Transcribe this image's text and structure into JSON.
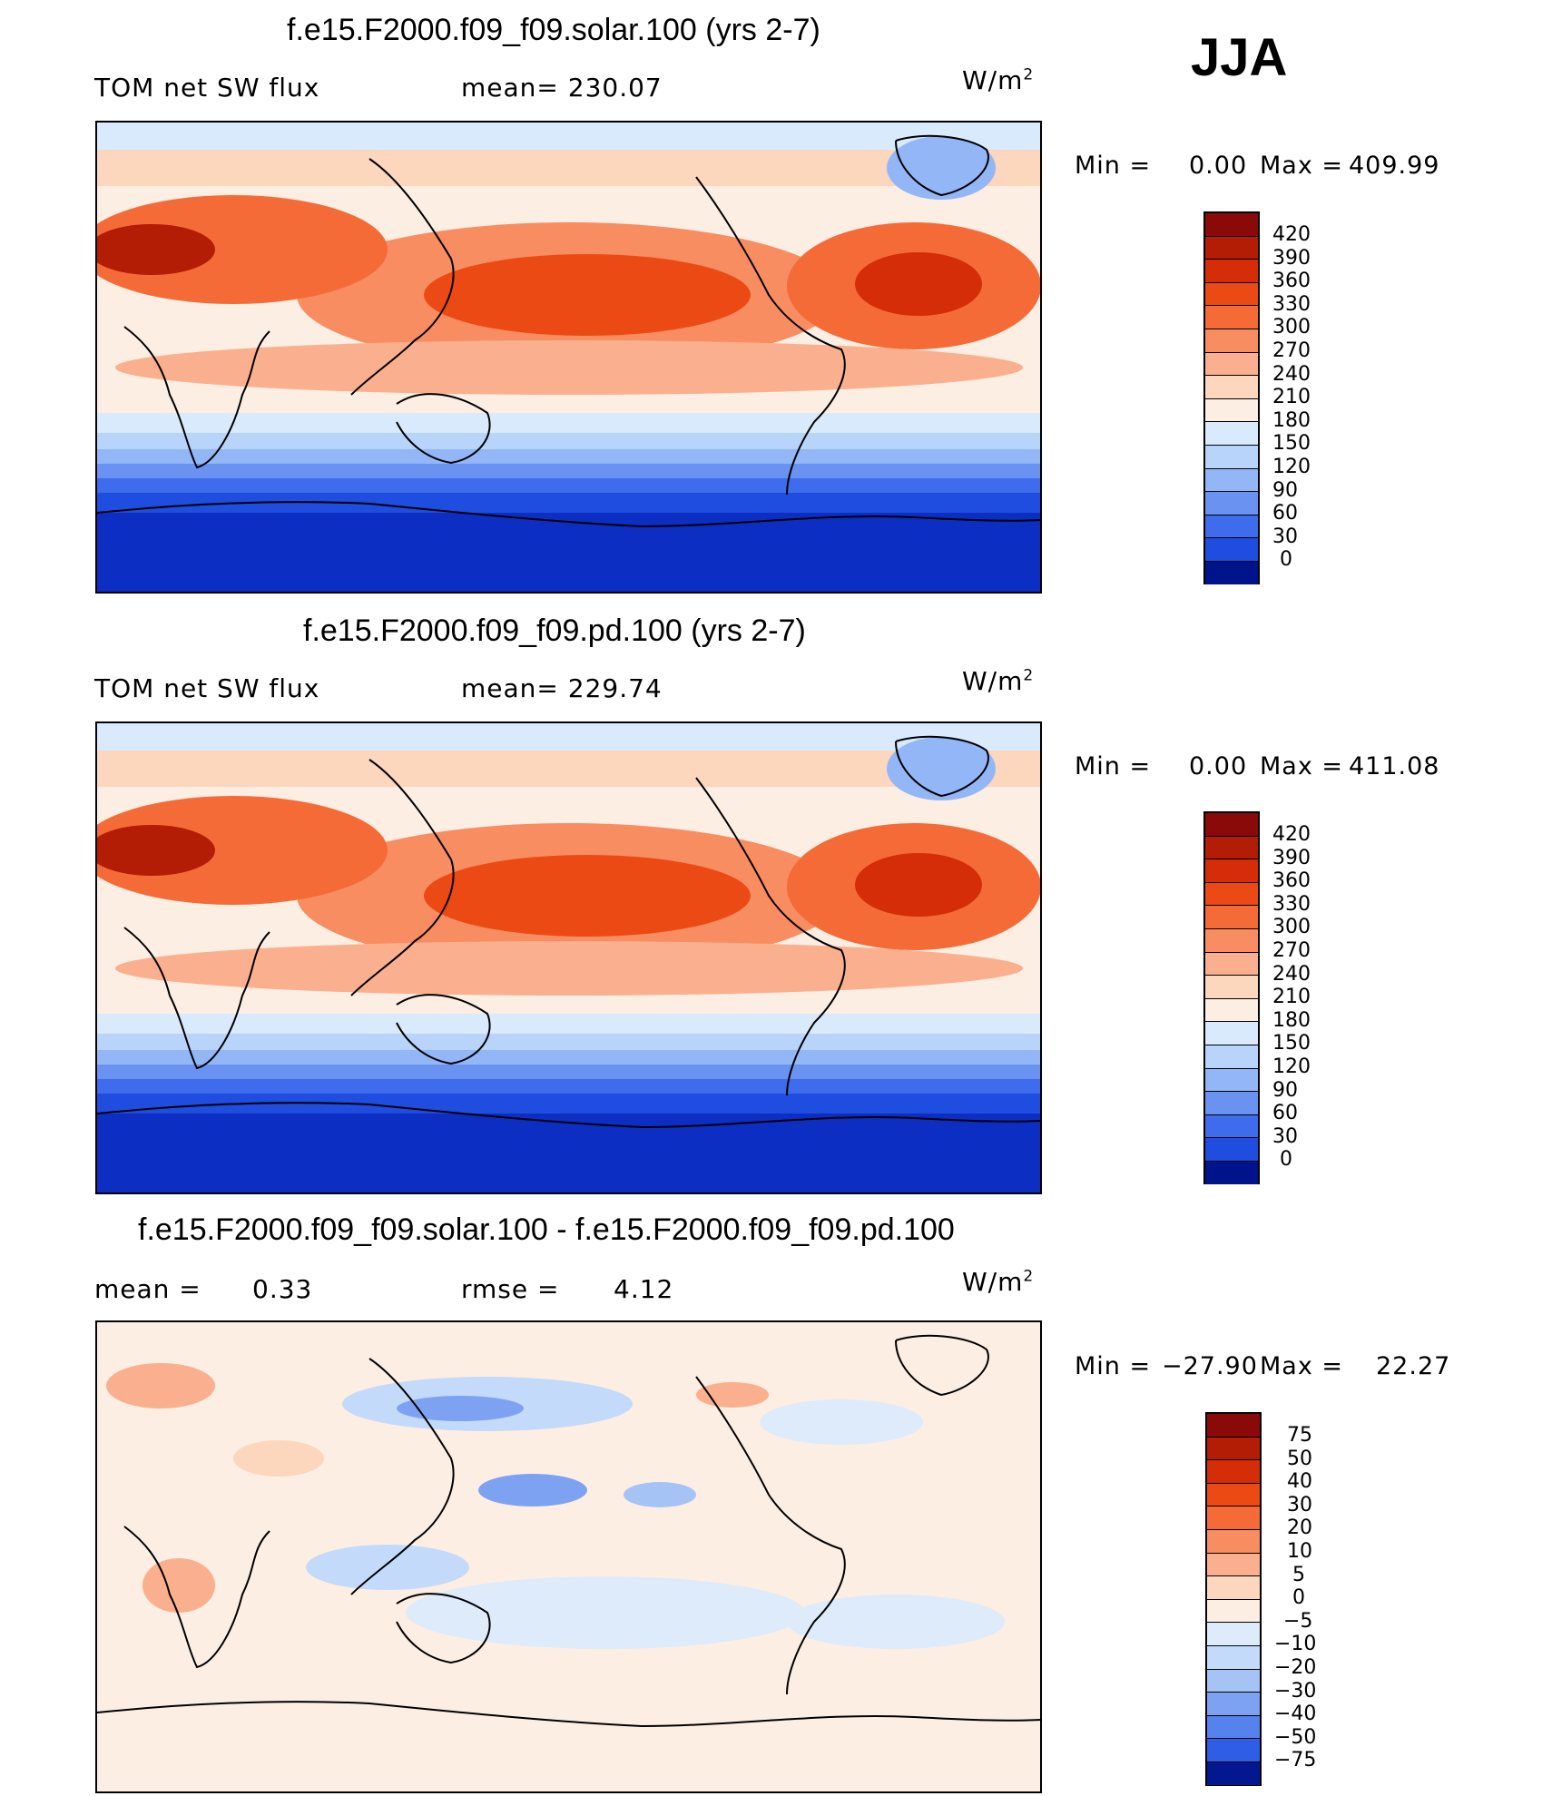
{
  "season": "JJA",
  "panels": [
    {
      "title": "f.e15.F2000.f09_f09.solar.100 (yrs 2-7)",
      "left_label": "TOM net SW flux",
      "center_label": "mean= 230.07",
      "units": "W/m",
      "units_exp": "2",
      "min_label": "Min =",
      "min_value": "0.00",
      "max_label": "Max =",
      "max_value": "409.99",
      "legend_labels": [
        "420",
        "390",
        "360",
        "330",
        "300",
        "270",
        "240",
        "210",
        "180",
        "150",
        "120",
        "90",
        "60",
        "30",
        "0"
      ]
    },
    {
      "title": "f.e15.F2000.f09_f09.pd.100 (yrs 2-7)",
      "left_label": "TOM net SW flux",
      "center_label": "mean= 229.74",
      "units": "W/m",
      "units_exp": "2",
      "min_label": "Min =",
      "min_value": "0.00",
      "max_label": "Max =",
      "max_value": "411.08",
      "legend_labels": [
        "420",
        "390",
        "360",
        "330",
        "300",
        "270",
        "240",
        "210",
        "180",
        "150",
        "120",
        "90",
        "60",
        "30",
        "0"
      ]
    },
    {
      "title": "f.e15.F2000.f09_f09.solar.100 - f.e15.F2000.f09_f09.pd.100",
      "left_label": "mean =",
      "left_value": "0.33",
      "center_label": "rmse =",
      "center_value": "4.12",
      "units": "W/m",
      "units_exp": "2",
      "min_label": "Min =",
      "min_value": "−27.90",
      "max_label": "Max =",
      "max_value": "22.27",
      "legend_labels": [
        "75",
        "50",
        "40",
        "30",
        "20",
        "10",
        "5",
        "0",
        "−5",
        "−10",
        "−20",
        "−30",
        "−40",
        "−50",
        "−75"
      ]
    }
  ],
  "colors": {
    "flux_scale": [
      "#8a0a0a",
      "#b31c05",
      "#d42d08",
      "#ec4a14",
      "#f46b38",
      "#f88d62",
      "#fab08e",
      "#fcd6bd",
      "#fdeee3",
      "#d8eafc",
      "#b8d4fa",
      "#93b6f6",
      "#6a93f1",
      "#3f6cec",
      "#1e4ddf",
      "#0c2ec2",
      "#051fa6",
      "#00138a"
    ],
    "diff_scale": [
      "#8a0a0a",
      "#b31c05",
      "#d42d08",
      "#ec4a14",
      "#f46b38",
      "#f88d62",
      "#fab08e",
      "#fcd6bd",
      "#fdeee3",
      "#ddebfb",
      "#c4dafa",
      "#a6c3f6",
      "#7ea2f2",
      "#5682ee",
      "#2e5ee6",
      "#1439cf",
      "#0b23b0",
      "#031790"
    ],
    "coastline": "#000000"
  }
}
